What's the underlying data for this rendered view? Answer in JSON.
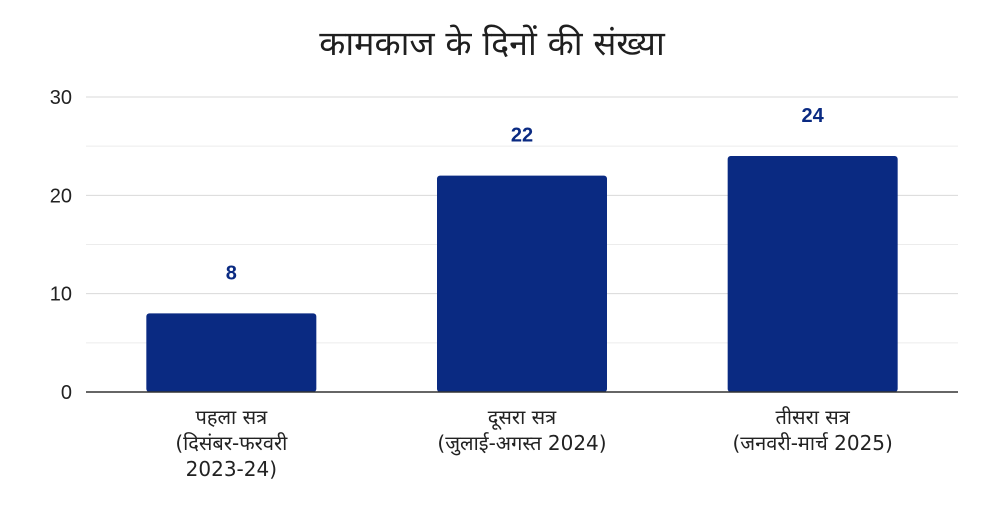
{
  "chart_data": {
    "type": "bar",
    "title": "कामकाज के दिनों की संख्या",
    "categories": [
      [
        "पहला सत्र",
        "(दिसंबर-फरवरी",
        "2023-24)"
      ],
      [
        "दूसरा सत्र",
        "(जुलाई-अगस्त 2024)"
      ],
      [
        "तीसरा सत्र",
        "(जनवरी-मार्च 2025)"
      ]
    ],
    "values": [
      8,
      22,
      24
    ],
    "data_labels": [
      "8",
      "22",
      "24"
    ],
    "ylim": [
      0,
      30
    ],
    "yticks": [
      0,
      10,
      20,
      30
    ],
    "grid": true,
    "bar_color": "#0a2a82",
    "label_color": "#0a2a82"
  }
}
